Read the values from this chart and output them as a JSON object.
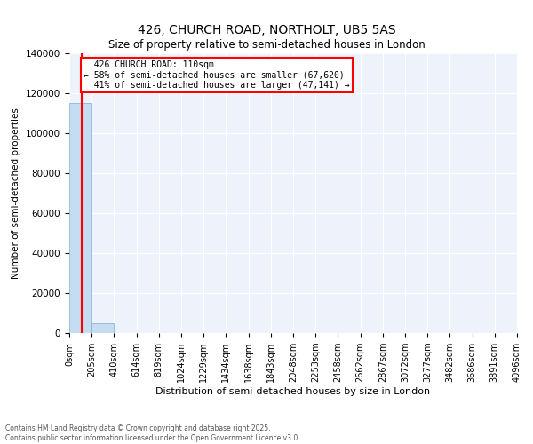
{
  "title": "426, CHURCH ROAD, NORTHOLT, UB5 5AS",
  "subtitle": "Size of property relative to semi-detached houses in London",
  "xlabel": "Distribution of semi-detached houses by size in London",
  "ylabel": "Number of semi-detached properties",
  "property_size_sqm": 110,
  "property_label": "426 CHURCH ROAD: 110sqm",
  "pct_smaller": 58,
  "pct_larger": 41,
  "count_smaller": 67620,
  "count_larger": 47141,
  "bar_color": "#c6dcf0",
  "bar_edge_color": "#7bafd4",
  "red_line_color": "red",
  "background_color": "#eef2fa",
  "grid_color": "white",
  "bin_edges": [
    0,
    204.8,
    409.6,
    614.4,
    819.2,
    1024.0,
    1228.8,
    1433.6,
    1638.4,
    1843.2,
    2048.0,
    2252.8,
    2457.6,
    2662.4,
    2867.2,
    3072.0,
    3276.8,
    3481.6,
    3686.4,
    3891.2,
    4096.0
  ],
  "bin_labels": [
    "0sqm",
    "205sqm",
    "410sqm",
    "614sqm",
    "819sqm",
    "1024sqm",
    "1229sqm",
    "1434sqm",
    "1638sqm",
    "1843sqm",
    "2048sqm",
    "2253sqm",
    "2458sqm",
    "2662sqm",
    "2867sqm",
    "3072sqm",
    "3277sqm",
    "3482sqm",
    "3686sqm",
    "3891sqm",
    "4096sqm"
  ],
  "bar_heights": [
    115000,
    4800,
    200,
    60,
    30,
    15,
    10,
    5,
    3,
    2,
    1,
    1,
    0,
    0,
    0,
    0,
    0,
    0,
    0,
    0
  ],
  "ylim": [
    0,
    140000
  ],
  "yticks": [
    0,
    20000,
    40000,
    60000,
    80000,
    100000,
    120000,
    140000
  ],
  "footer_line1": "Contains HM Land Registry data © Crown copyright and database right 2025.",
  "footer_line2": "Contains public sector information licensed under the Open Government Licence v3.0."
}
